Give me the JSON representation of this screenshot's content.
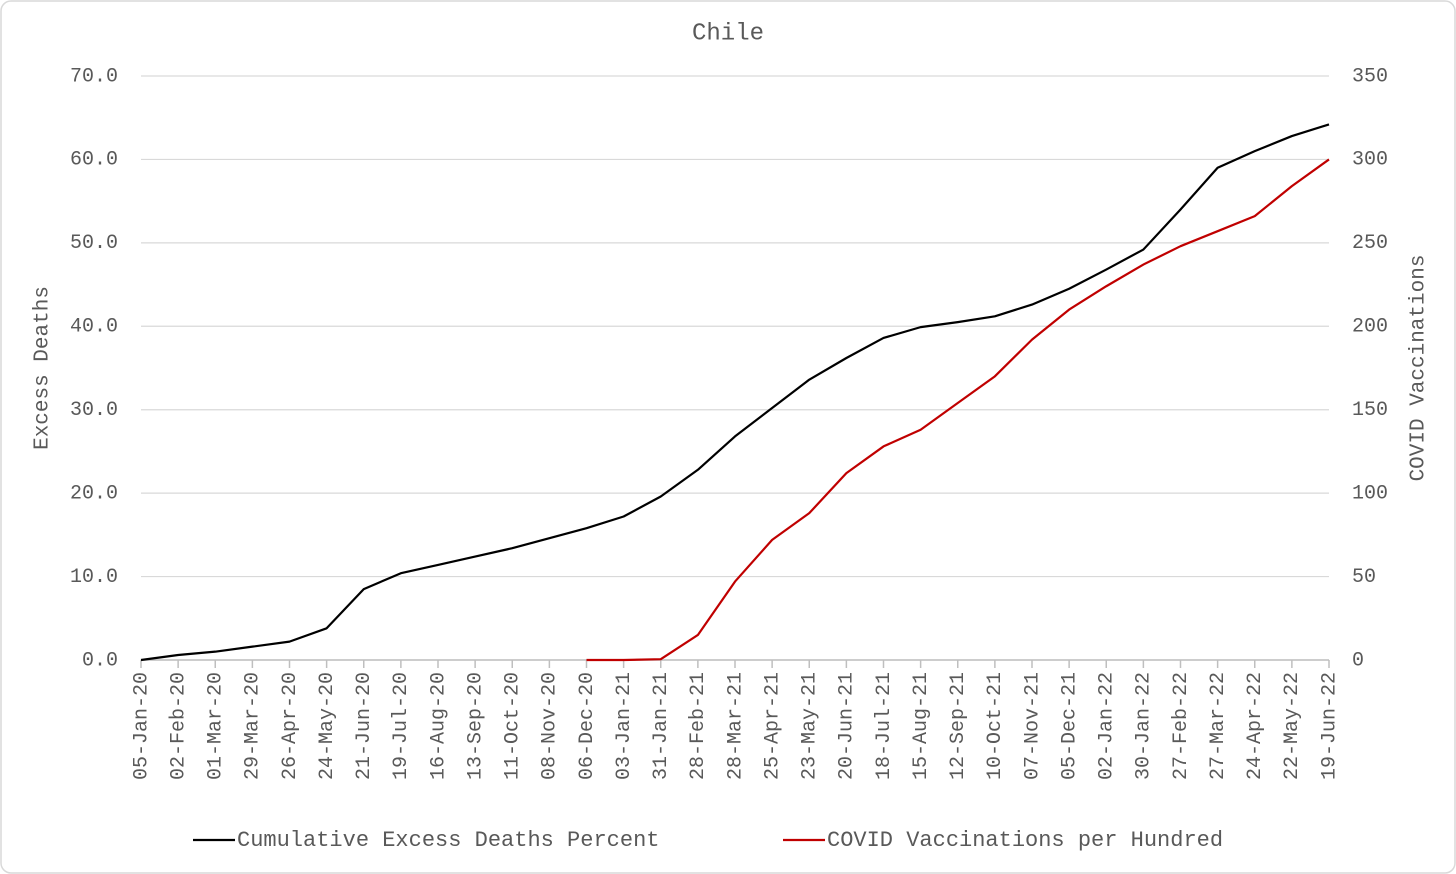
{
  "chart_data": {
    "type": "line",
    "title": "Chile",
    "y_label": "Excess Deaths",
    "y2_label": "COVID Vaccinations",
    "categories": [
      "05-Jan-20",
      "02-Feb-20",
      "01-Mar-20",
      "29-Mar-20",
      "26-Apr-20",
      "24-May-20",
      "21-Jun-20",
      "19-Jul-20",
      "16-Aug-20",
      "13-Sep-20",
      "11-Oct-20",
      "08-Nov-20",
      "06-Dec-20",
      "03-Jan-21",
      "31-Jan-21",
      "28-Feb-21",
      "28-Mar-21",
      "25-Apr-21",
      "23-May-21",
      "20-Jun-21",
      "18-Jul-21",
      "15-Aug-21",
      "12-Sep-21",
      "10-Oct-21",
      "07-Nov-21",
      "05-Dec-21",
      "02-Jan-22",
      "30-Jan-22",
      "27-Feb-22",
      "27-Mar-22",
      "24-Apr-22",
      "22-May-22",
      "19-Jun-22"
    ],
    "series": [
      {
        "name": "Cumulative Excess Deaths Percent",
        "color": "#000000",
        "axis": "y",
        "values": [
          0.0,
          0.6,
          1.0,
          1.6,
          2.2,
          3.8,
          8.5,
          10.4,
          11.4,
          12.4,
          13.4,
          14.6,
          15.8,
          17.2,
          19.6,
          22.8,
          26.8,
          30.2,
          33.6,
          36.2,
          38.6,
          39.9,
          40.5,
          41.2,
          42.6,
          44.5,
          46.8,
          49.2,
          54.0,
          59.0,
          61.0,
          62.8,
          64.2
        ]
      },
      {
        "name": "COVID Vaccinations per Hundred",
        "color": "#c00000",
        "axis": "y2",
        "values": [
          null,
          null,
          null,
          null,
          null,
          null,
          null,
          null,
          null,
          null,
          null,
          null,
          0,
          0,
          0.5,
          15,
          47,
          72,
          88,
          112,
          128,
          138,
          154,
          170,
          192,
          210,
          224,
          237,
          248,
          257,
          266,
          284,
          300
        ]
      }
    ],
    "ylim": [
      0,
      70
    ],
    "yticks": [
      {
        "value": 0,
        "label": "0.0"
      },
      {
        "value": 10,
        "label": "10.0"
      },
      {
        "value": 20,
        "label": "20.0"
      },
      {
        "value": 30,
        "label": "30.0"
      },
      {
        "value": 40,
        "label": "40.0"
      },
      {
        "value": 50,
        "label": "50.0"
      },
      {
        "value": 60,
        "label": "60.0"
      },
      {
        "value": 70,
        "label": "70.0"
      }
    ],
    "y2lim": [
      0,
      350
    ],
    "y2ticks": [
      0,
      50,
      100,
      150,
      200,
      250,
      300,
      350
    ],
    "grid": true,
    "legend": "bottom"
  }
}
